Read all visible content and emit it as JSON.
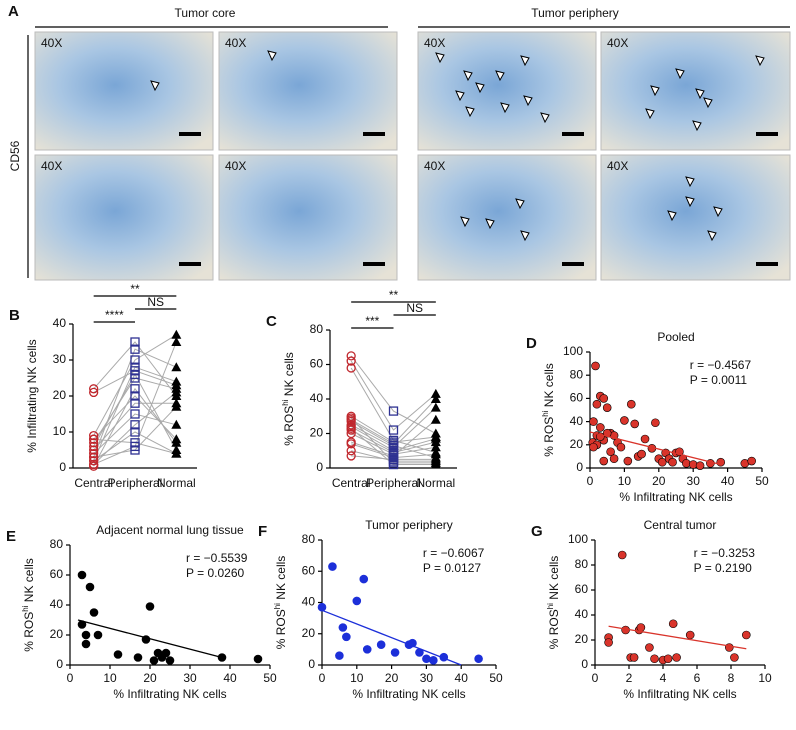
{
  "panel_a": {
    "panel": "A",
    "core_title": "Tumor core",
    "periphery_title": "Tumor periphery",
    "row_label": "CD56",
    "magnification": "40X"
  },
  "chart_data": [
    {
      "type": "paired",
      "panel": "B",
      "ylabel": "% Infiltrating NK cells",
      "categories": [
        "Central",
        "Peripheral",
        "Normal"
      ],
      "ylim": [
        0,
        40
      ],
      "yticks": [
        0,
        10,
        20,
        30,
        40
      ],
      "groups": [
        {
          "color": "#c0272d",
          "marker": "circle",
          "values": [
            21,
            22,
            9,
            8,
            7,
            6,
            5,
            4,
            3,
            2,
            1,
            1,
            0.5,
            3,
            2,
            8
          ]
        },
        {
          "color": "#2e3192",
          "marker": "square",
          "values": [
            27,
            35,
            30,
            20,
            25,
            26,
            18,
            15,
            33,
            10,
            6,
            12,
            22,
            5,
            28,
            7
          ]
        },
        {
          "color": "#000000",
          "marker": "triangle",
          "values": [
            23,
            20,
            37,
            8,
            22,
            5,
            18,
            12,
            28,
            4,
            35,
            21,
            7,
            17,
            24,
            4
          ]
        }
      ],
      "brackets": [
        {
          "between": [
            0,
            1
          ],
          "label": "****"
        },
        {
          "between": [
            1,
            2
          ],
          "label": "NS"
        },
        {
          "between": [
            0,
            2
          ],
          "label": "**"
        }
      ]
    },
    {
      "type": "paired",
      "panel": "C",
      "ylabel": [
        "% ROS",
        "hi",
        " NK cells"
      ],
      "categories": [
        "Central",
        "Peripheral",
        "Normal"
      ],
      "ylim": [
        0,
        80
      ],
      "yticks": [
        0,
        20,
        40,
        60,
        80
      ],
      "groups": [
        {
          "color": "#c0272d",
          "marker": "circle",
          "values": [
            65,
            62,
            58,
            30,
            28,
            27,
            25,
            24,
            22,
            20,
            15,
            14,
            7,
            10,
            29,
            23
          ]
        },
        {
          "color": "#2e3192",
          "marker": "square",
          "values": [
            33,
            22,
            16,
            15,
            14,
            13,
            12,
            10,
            9,
            8,
            7,
            6,
            5,
            4,
            3,
            2
          ]
        },
        {
          "color": "#000000",
          "marker": "triangle",
          "values": [
            20,
            43,
            9,
            18,
            40,
            6,
            35,
            17,
            15,
            12,
            28,
            8,
            5,
            4,
            3,
            2
          ]
        }
      ],
      "brackets": [
        {
          "between": [
            0,
            1
          ],
          "label": "***"
        },
        {
          "between": [
            1,
            2
          ],
          "label": "NS"
        },
        {
          "between": [
            0,
            2
          ],
          "label": "**"
        }
      ]
    },
    {
      "type": "scatter",
      "panel": "D",
      "title": "Pooled",
      "xlabel": "% Infiltrating NK cells",
      "ylabel": [
        "% ROS",
        "hi",
        " NK cells"
      ],
      "xlim": [
        0,
        50
      ],
      "xticks": [
        0,
        10,
        20,
        30,
        40,
        50
      ],
      "ylim": [
        0,
        100
      ],
      "yticks": [
        0,
        20,
        40,
        60,
        80,
        100
      ],
      "color": "#d9342b",
      "stats": [
        "r = −0.4567",
        "P = 0.0011"
      ],
      "x": [
        1.6,
        3,
        2,
        4,
        5,
        1,
        3,
        6,
        7,
        2,
        0.8,
        4,
        8,
        12,
        13,
        10,
        9,
        5,
        6,
        3,
        2,
        1,
        7,
        11,
        14,
        16,
        18,
        19,
        20,
        21,
        22,
        23,
        24,
        25,
        26,
        27,
        28,
        30,
        32,
        35,
        38,
        45,
        47,
        4,
        15
      ],
      "values": [
        88,
        62,
        55,
        60,
        52,
        40,
        35,
        30,
        28,
        28,
        22,
        24,
        22,
        55,
        38,
        41,
        18,
        30,
        14,
        27,
        20,
        18,
        8,
        6,
        10,
        25,
        17,
        39,
        8,
        5,
        13,
        8,
        5,
        13,
        14,
        8,
        4,
        3,
        2,
        4,
        5,
        4,
        6,
        6,
        12
      ],
      "fit": {
        "x": [
          0,
          38
        ],
        "y": [
          31,
          3
        ]
      }
    },
    {
      "type": "scatter",
      "panel": "E",
      "title": "Adjacent normal lung tissue",
      "xlabel": "% Infiltrating NK cells",
      "ylabel": [
        "% ROS",
        "hi",
        " NK cells"
      ],
      "xlim": [
        0,
        50
      ],
      "xticks": [
        0,
        10,
        20,
        30,
        40,
        50
      ],
      "ylim": [
        0,
        80
      ],
      "yticks": [
        0,
        20,
        40,
        60,
        80
      ],
      "color": "#000000",
      "stats": [
        "r = −0.5539",
        "P = 0.0260"
      ],
      "x": [
        3,
        5,
        6,
        3,
        4,
        7,
        4,
        12,
        19,
        20,
        22,
        23,
        24,
        25,
        38,
        47,
        21,
        17
      ],
      "values": [
        60,
        52,
        35,
        27,
        20,
        20,
        14,
        7,
        17,
        39,
        8,
        5,
        8,
        3,
        5,
        4,
        3,
        5
      ],
      "fit": {
        "x": [
          2,
          38
        ],
        "y": [
          30,
          5
        ]
      }
    },
    {
      "type": "scatter",
      "panel": "F",
      "title": "Tumor periphery",
      "xlabel": "% Infiltrating NK cells",
      "ylabel": [
        "% ROS",
        "hi",
        " NK cells"
      ],
      "xlim": [
        0,
        50
      ],
      "xticks": [
        0,
        10,
        20,
        30,
        40,
        50
      ],
      "ylim": [
        0,
        80
      ],
      "yticks": [
        0,
        20,
        40,
        60,
        80
      ],
      "color": "#1c2fd9",
      "stats": [
        "r = −0.6067",
        "P = 0.0127"
      ],
      "x": [
        0,
        3,
        6,
        7,
        5,
        10,
        12,
        13,
        17,
        21,
        25,
        26,
        28,
        30,
        32,
        45,
        35
      ],
      "values": [
        37,
        63,
        24,
        18,
        6,
        41,
        55,
        10,
        13,
        8,
        13,
        14,
        8,
        4,
        3,
        4,
        5
      ],
      "fit": {
        "x": [
          0,
          40
        ],
        "y": [
          35,
          0
        ]
      }
    },
    {
      "type": "scatter",
      "panel": "G",
      "title": "Central tumor",
      "xlabel": "% Infiltrating NK cells",
      "ylabel": [
        "% ROS",
        "hi",
        " NK cells"
      ],
      "xlim": [
        0,
        10
      ],
      "xticks": [
        0,
        2,
        4,
        6,
        8,
        10
      ],
      "ylim": [
        0,
        100
      ],
      "yticks": [
        0,
        20,
        40,
        60,
        80,
        100
      ],
      "color": "#d9342b",
      "stats": [
        "r = −0.3253",
        "P = 0.2190"
      ],
      "x": [
        0.8,
        0.8,
        1.6,
        1.8,
        2.1,
        2.3,
        2.6,
        2.7,
        3.2,
        3.5,
        4,
        4.3,
        4.6,
        4.8,
        5.6,
        7.9,
        8.2,
        8.9
      ],
      "values": [
        22,
        18,
        88,
        28,
        6,
        6,
        28,
        30,
        14,
        5,
        4,
        5,
        33,
        6,
        24,
        14,
        6,
        24
      ],
      "fit": {
        "x": [
          0.8,
          8.9
        ],
        "y": [
          31,
          13
        ]
      }
    }
  ]
}
